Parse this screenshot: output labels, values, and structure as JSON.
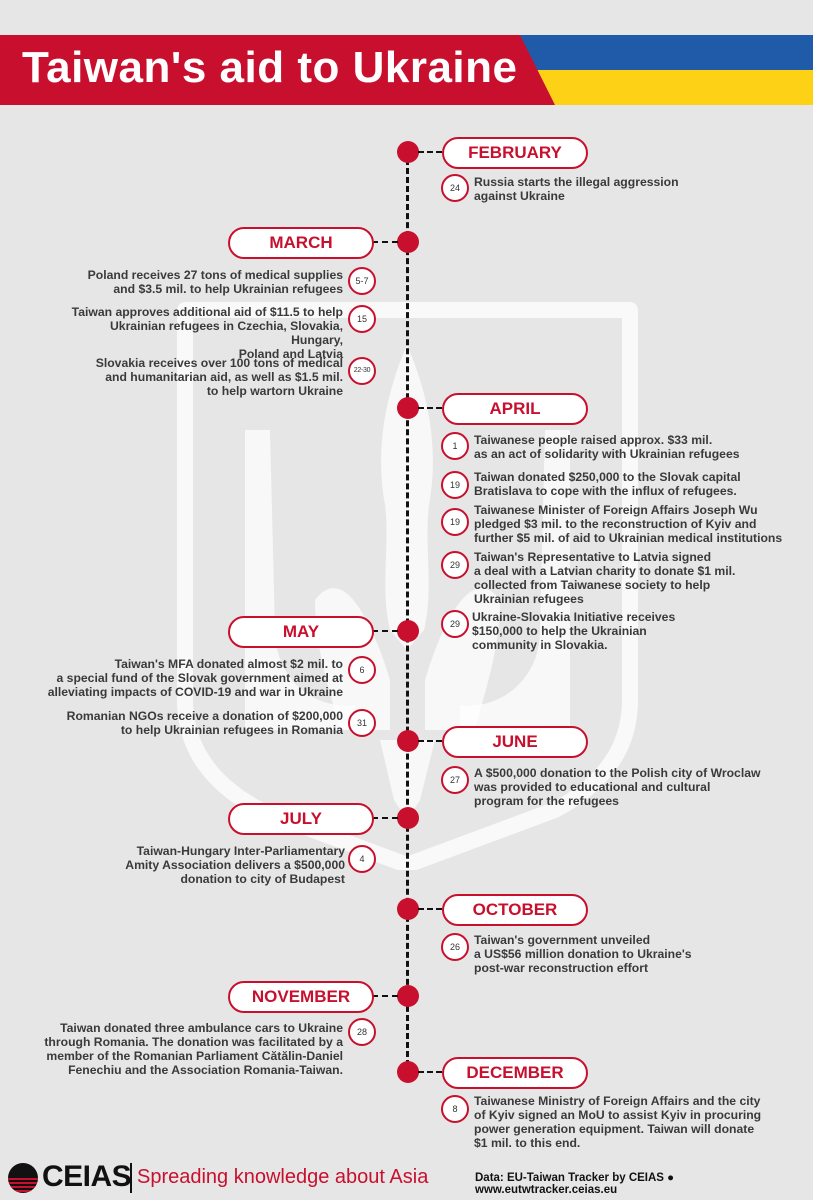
{
  "title": "Taiwan's aid to Ukraine",
  "colors": {
    "red": "#c8102e",
    "flag_blue": "#1f5ba8",
    "flag_yellow": "#fcd116",
    "background": "#e6e6e6"
  },
  "months": {
    "feb": "FEBRUARY",
    "mar": "MARCH",
    "apr": "APRIL",
    "may": "MAY",
    "jun": "JUNE",
    "jul": "JULY",
    "oct": "OCTOBER",
    "nov": "NOVEMBER",
    "dec": "DECEMBER"
  },
  "events": {
    "feb24": {
      "day": "24",
      "text": "Russia starts the illegal aggression\nagainst Ukraine"
    },
    "mar57": {
      "day": "5-7",
      "text": "Poland receives 27 tons of medical supplies\nand $3.5 mil. to help Ukrainian refugees"
    },
    "mar15": {
      "day": "15",
      "text": "Taiwan approves additional aid of $11.5 to help\nUkrainian refugees in Czechia, Slovakia, Hungary,\nPoland and Latvia"
    },
    "mar2230": {
      "day": "22-30",
      "text": "Slovakia receives over 100 tons of medical\nand humanitarian aid, as well as $1.5 mil.\nto help wartorn Ukraine"
    },
    "apr1": {
      "day": "1",
      "text": "Taiwanese people raised approx. $33 mil.\nas an act of solidarity with Ukrainian refugees"
    },
    "apr19a": {
      "day": "19",
      "text": "Taiwan donated $250,000 to the Slovak capital\nBratislava to cope with the influx of refugees."
    },
    "apr19b": {
      "day": "19",
      "text": "Taiwanese Minister of Foreign Affairs Joseph Wu\npledged $3 mil. to the reconstruction of Kyiv and\nfurther $5 mil. of aid to Ukrainian medical institutions"
    },
    "apr29a": {
      "day": "29",
      "text": "Taiwan's Representative to Latvia signed\na deal with a Latvian charity to donate $1 mil.\ncollected from Taiwanese society to help\nUkrainian refugees"
    },
    "apr29b": {
      "day": "29",
      "text": "Ukraine-Slovakia Initiative receives\n$150,000 to help the Ukrainian\ncommunity in Slovakia."
    },
    "may6": {
      "day": "6",
      "text": "Taiwan's MFA donated almost $2 mil. to\na special fund of the Slovak government aimed at\nalleviating impacts of COVID-19 and  war in Ukraine"
    },
    "may31": {
      "day": "31",
      "text": "Romanian NGOs receive a  donation of $200,000\nto help Ukrainian refugees in Romania"
    },
    "jun27": {
      "day": "27",
      "text": "A $500,000 donation to the Polish city of Wroclaw\nwas provided to educational and cultural\nprogram for the refugees"
    },
    "jul4": {
      "day": "4",
      "text": "Taiwan-Hungary Inter-Parliamentary\nAmity Association delivers a $500,000\ndonation to city of Budapest"
    },
    "oct26": {
      "day": "26",
      "text": "Taiwan's government unveiled\na US$56 million donation to Ukraine's\npost-war reconstruction effort"
    },
    "nov28": {
      "day": "28",
      "text": "Taiwan donated three ambulance cars to Ukraine\nthrough Romania. The donation was facilitated by a\nmember of the Romanian Parliament Cătălin-Daniel\nFenechiu and the Association Romania-Taiwan."
    },
    "dec8": {
      "day": "8",
      "text": "Taiwanese Ministry of Foreign Affairs and the city\nof Kyiv signed an MoU to assist Kyiv in procuring\npower generation equipment. Taiwan will donate\n$1 mil. to this end."
    }
  },
  "footer": {
    "brand": "CEIAS",
    "tagline": "Spreading knowledge about Asia",
    "source": "Data: EU-Taiwan Tracker by CEIAS ● www.eutwtracker.ceias.eu"
  }
}
